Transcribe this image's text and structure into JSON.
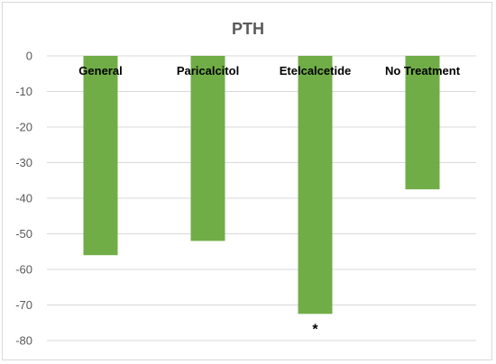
{
  "chart_data": {
    "type": "bar",
    "title": "PTH",
    "categories": [
      "General",
      "Paricalcitol",
      "Etelcalcetide",
      "No Treatment"
    ],
    "values": [
      -56,
      -52,
      -72.5,
      -37.5
    ],
    "ylim": [
      -80,
      0
    ],
    "yticks": [
      "0",
      "-10",
      "-20",
      "-30",
      "-40",
      "-50",
      "-60",
      "-70",
      "-80"
    ],
    "ytick_values": [
      0,
      -10,
      -20,
      -30,
      -40,
      -50,
      -60,
      -70,
      -80
    ],
    "xlabel": "",
    "ylabel": "",
    "grid": true,
    "legend": "none",
    "bar_color": "#70ad47",
    "grid_color": "#d9d9d9",
    "annotations": [
      {
        "category": "Etelcalcetide",
        "text": "*"
      }
    ]
  }
}
